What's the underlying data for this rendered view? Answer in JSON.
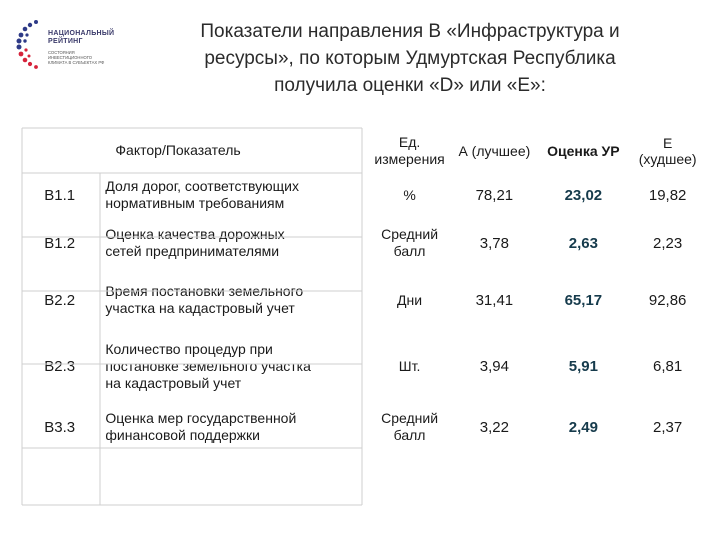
{
  "logo": {
    "lines": [
      "НАЦИОНАЛЬНЫЙ",
      "РЕЙТИНГ"
    ],
    "sub": [
      "СОСТОЯНИЯ",
      "ИНВЕСТИЦИОННОГО",
      "КЛИМАТА В СУБЪЕКТАХ РФ"
    ],
    "colors": {
      "blue": "#2e3a87",
      "red": "#d6233b"
    }
  },
  "title": {
    "lines": [
      "Показатели направления В «Инфраструктура и",
      "ресурсы», по которым Удмуртская Республика",
      "получила оценки «D» или «Е»:"
    ]
  },
  "table": {
    "headers": {
      "factor": "Фактор/Показатель",
      "unit_line1": "Ед.",
      "unit_line2": "измерения",
      "best": "А  (лучшее)",
      "ur": "Оценка УР",
      "worst_line1": "Е",
      "worst_line2": "(худшее)"
    },
    "rows": [
      {
        "code": "В1.1",
        "factor": [
          "Доля дорог, соответствующих",
          "нормативным требованиям"
        ],
        "unit": [
          "%"
        ],
        "best": "78,21",
        "ur": "23,02",
        "worst": "19,82"
      },
      {
        "code": "В1.2",
        "factor": [
          "Оценка качества дорожных",
          "сетей предпринимателями"
        ],
        "unit": [
          "Средний",
          "балл"
        ],
        "best": "3,78",
        "ur": "2,63",
        "worst": "2,23"
      },
      {
        "code": "В2.2",
        "factor": [
          "Время постановки земельного",
          "участка на кадастровый учет"
        ],
        "unit": [
          "Дни"
        ],
        "best": "31,41",
        "ur": "65,17",
        "worst": "92,86"
      },
      {
        "code": "В2.3",
        "factor": [
          "Количество процедур при",
          "постановке земельного участка",
          "на кадастровый учет"
        ],
        "unit": [
          "Шт."
        ],
        "best": "3,94",
        "ur": "5,91",
        "worst": "6,81"
      },
      {
        "code": "В3.3",
        "factor": [
          "Оценка мер государственной",
          "финансовой поддержки"
        ],
        "unit": [
          "Средний",
          "балл"
        ],
        "best": "3,22",
        "ur": "2,49",
        "worst": "2,37"
      }
    ]
  }
}
